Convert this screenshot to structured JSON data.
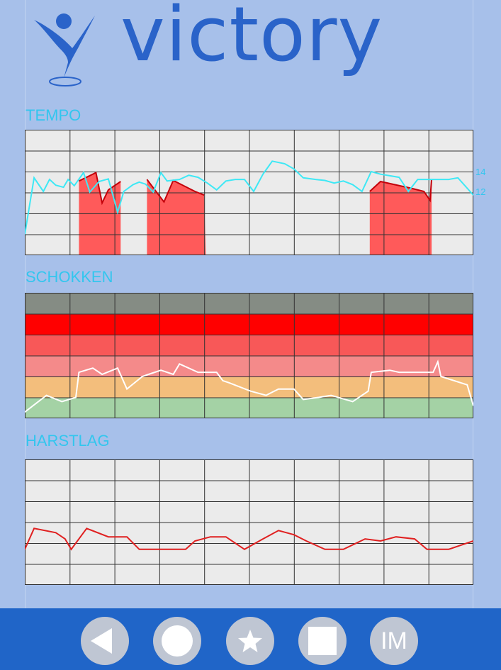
{
  "app": {
    "name": "victory"
  },
  "sections": {
    "tempo": "TEMPO",
    "schokken": "SCHOKKEN",
    "harstlag": "HARSTLAG"
  },
  "tempo_axis_labels": [
    "14",
    "12"
  ],
  "nav": [
    {
      "icon": "back-arrow-icon"
    },
    {
      "icon": "circle-icon"
    },
    {
      "icon": "star-icon"
    },
    {
      "icon": "square-icon"
    },
    {
      "icon": "im-icon",
      "label": "IM"
    }
  ],
  "colors": {
    "background": "#a7c0ea",
    "accent": "#2a63c9",
    "section_title": "#33c6ee",
    "bottom_bar": "#2065c8",
    "tempo_line": "#3ee8f5",
    "tempo_fill": "#ff5a5a",
    "heart_line": "#e02020",
    "zone_gray": "#858c84",
    "zone_red": "#ff0000",
    "zone_light_red": "#f85858",
    "zone_pink": "#f48a8a",
    "zone_orange": "#f3be7c",
    "zone_green": "#a4d2a5"
  },
  "chart_data": [
    {
      "type": "line",
      "title": "TEMPO",
      "y_labels": [
        "14",
        "12"
      ],
      "series": [
        {
          "points": [
            [
              0,
              4.0
            ],
            [
              3,
              14.8
            ],
            [
              6,
              12.2
            ],
            [
              8,
              14.5
            ],
            [
              10,
              13.4
            ],
            [
              12.5,
              13.0
            ],
            [
              14,
              14.5
            ],
            [
              16,
              13.3
            ],
            [
              19,
              15.8
            ],
            [
              21,
              12.1
            ],
            [
              24,
              14.1
            ],
            [
              27,
              14.6
            ],
            [
              30,
              8.2
            ],
            [
              32,
              12.2
            ],
            [
              35,
              13.5
            ],
            [
              37,
              14.0
            ],
            [
              39,
              13.6
            ],
            [
              41.5,
              12.1
            ],
            [
              44,
              15.8
            ],
            [
              46,
              14.2
            ],
            [
              50,
              14.5
            ],
            [
              53,
              15.3
            ],
            [
              56,
              14.9
            ],
            [
              59,
              13.8
            ],
            [
              62,
              12.5
            ],
            [
              65,
              14.2
            ],
            [
              68,
              14.5
            ],
            [
              71,
              14.5
            ],
            [
              74,
              12.2
            ],
            [
              77,
              15.5
            ],
            [
              80,
              18.0
            ],
            [
              84,
              17.5
            ],
            [
              87,
              16.5
            ],
            [
              90,
              14.8
            ],
            [
              94,
              14.5
            ],
            [
              97,
              14.3
            ],
            [
              100,
              13.8
            ],
            [
              103,
              14.2
            ],
            [
              106,
              13.5
            ],
            [
              109,
              12.2
            ],
            [
              112,
              16.0
            ],
            [
              115,
              15.5
            ],
            [
              118,
              15.2
            ],
            [
              121,
              14.9
            ],
            [
              124,
              12.2
            ],
            [
              127,
              14.5
            ],
            [
              130,
              14.5
            ],
            [
              133,
              14.5
            ],
            [
              135,
              14.5
            ],
            [
              137,
              14.5
            ],
            [
              140,
              14.8
            ],
            [
              145,
              11.5
            ]
          ]
        }
      ],
      "fills": [
        {
          "points": [
            [
              17.5,
              0
            ],
            [
              17.5,
              14.2
            ],
            [
              23,
              15.8
            ],
            [
              25,
              10.0
            ],
            [
              27,
              12.5
            ],
            [
              31,
              14.1
            ],
            [
              31,
              0
            ]
          ]
        },
        {
          "points": [
            [
              39.5,
              0
            ],
            [
              39.5,
              14.5
            ],
            [
              45,
              10.2
            ],
            [
              48,
              14.3
            ],
            [
              55,
              12.2
            ],
            [
              58,
              11.5
            ],
            [
              58.5,
              0
            ]
          ]
        },
        {
          "points": [
            [
              111.5,
              0
            ],
            [
              111.5,
              12.2
            ],
            [
              115,
              14.1
            ],
            [
              125,
              12.8
            ],
            [
              129,
              12.2
            ],
            [
              131,
              10.5
            ],
            [
              131.5,
              14.6
            ],
            [
              131.5,
              0
            ]
          ]
        }
      ],
      "x_range": [
        0,
        145
      ],
      "y_range": [
        0,
        24
      ]
    },
    {
      "type": "line",
      "title": "SCHOKKEN",
      "zones": [
        "gray",
        "red",
        "light_red",
        "pink",
        "orange",
        "green"
      ],
      "series": [
        {
          "points": [
            [
              0,
              0.3
            ],
            [
              7,
              1.1
            ],
            [
              12,
              0.8
            ],
            [
              16.5,
              1.0
            ],
            [
              17.5,
              2.2
            ],
            [
              22,
              2.4
            ],
            [
              25,
              2.1
            ],
            [
              30,
              2.4
            ],
            [
              33,
              1.4
            ],
            [
              38,
              2.0
            ],
            [
              40,
              2.1
            ],
            [
              44,
              2.3
            ],
            [
              48,
              2.1
            ],
            [
              50,
              2.6
            ],
            [
              56,
              2.2
            ],
            [
              60,
              2.2
            ],
            [
              62,
              2.2
            ],
            [
              64,
              1.8
            ],
            [
              66,
              1.7
            ],
            [
              73,
              1.3
            ],
            [
              78,
              1.1
            ],
            [
              82,
              1.4
            ],
            [
              87,
              1.4
            ],
            [
              90,
              0.9
            ],
            [
              95,
              1.0
            ],
            [
              99,
              1.1
            ],
            [
              106,
              0.8
            ],
            [
              111,
              1.3
            ],
            [
              112,
              2.2
            ],
            [
              118,
              2.3
            ],
            [
              121,
              2.2
            ],
            [
              128,
              2.2
            ],
            [
              132,
              2.2
            ],
            [
              133.5,
              2.7
            ],
            [
              134.5,
              2.0
            ],
            [
              143,
              1.6
            ],
            [
              145,
              0.6
            ]
          ]
        }
      ],
      "x_range": [
        0,
        145
      ],
      "y_range": [
        0,
        6
      ]
    },
    {
      "type": "line",
      "title": "HARSTLAG",
      "series": [
        {
          "points": [
            [
              0,
              1.7
            ],
            [
              3,
              2.7
            ],
            [
              10,
              2.5
            ],
            [
              13,
              2.2
            ],
            [
              15,
              1.7
            ],
            [
              20,
              2.7
            ],
            [
              27,
              2.3
            ],
            [
              33,
              2.3
            ],
            [
              37,
              1.7
            ],
            [
              41,
              1.7
            ],
            [
              45,
              1.7
            ],
            [
              48,
              1.7
            ],
            [
              52,
              1.7
            ],
            [
              55,
              2.1
            ],
            [
              60,
              2.3
            ],
            [
              65,
              2.3
            ],
            [
              71,
              1.7
            ],
            [
              77,
              2.2
            ],
            [
              82,
              2.6
            ],
            [
              87,
              2.4
            ],
            [
              91,
              2.1
            ],
            [
              97,
              1.7
            ],
            [
              103,
              1.7
            ],
            [
              110,
              2.2
            ],
            [
              115,
              2.1
            ],
            [
              120,
              2.3
            ],
            [
              126,
              2.2
            ],
            [
              130,
              1.7
            ],
            [
              137,
              1.7
            ],
            [
              145,
              2.1
            ]
          ]
        }
      ],
      "x_range": [
        0,
        145
      ],
      "y_range": [
        0,
        6
      ]
    }
  ]
}
